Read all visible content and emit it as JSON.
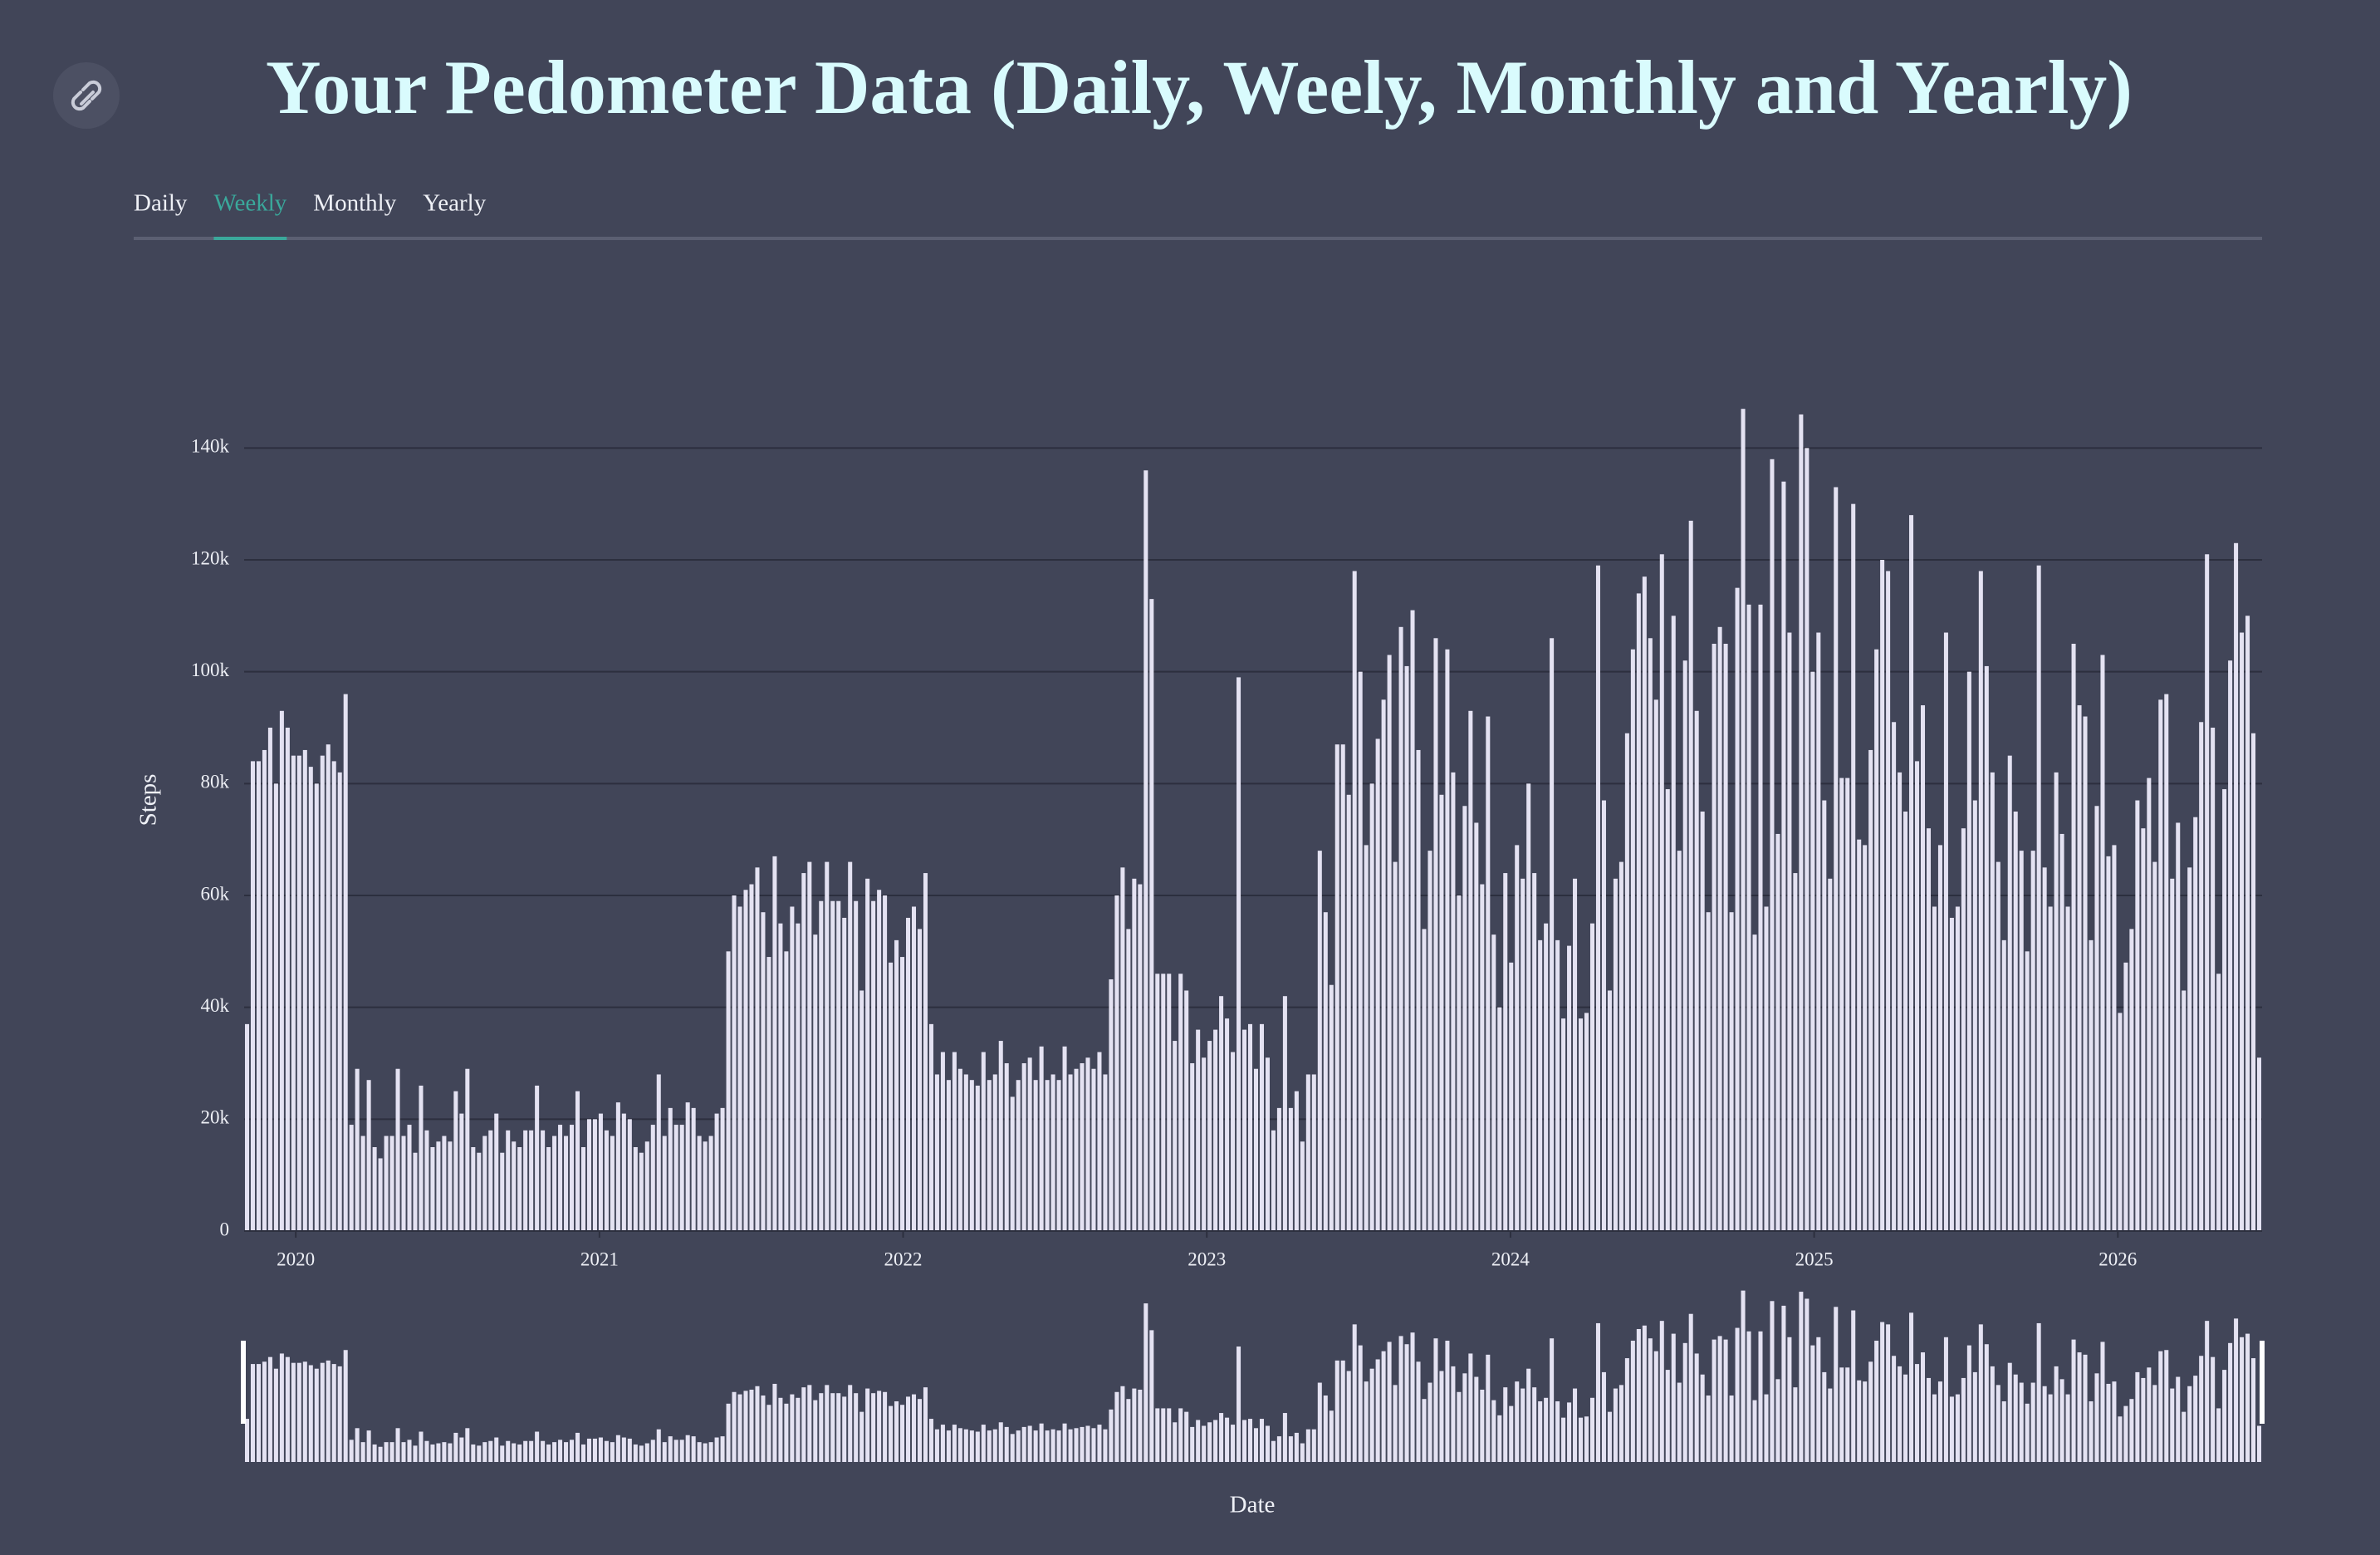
{
  "tabs": [
    "Daily",
    "Weekly",
    "Monthly",
    "Yearly"
  ],
  "active_tab": 1,
  "chart_data": {
    "type": "bar",
    "title": "Your Pedometer Data (Daily, Weely, Monthly and Yearly)",
    "ylabel": "Steps",
    "xlabel": "Date",
    "color": "#e4e2f2",
    "grid": true,
    "xlim": [
      2019.83,
      2026.475
    ],
    "xticks": [
      2020,
      2021,
      2022,
      2023,
      2024,
      2025,
      2026
    ],
    "ylim": [
      0,
      150000
    ],
    "yticks": [
      0,
      {
        "value": 20000,
        "label": "20k"
      },
      {
        "value": 40000,
        "label": "40k"
      },
      {
        "value": 60000,
        "label": "60k"
      },
      {
        "value": 80000,
        "label": "80k"
      },
      {
        "value": 100000,
        "label": "100k"
      },
      {
        "value": 120000,
        "label": "120k"
      },
      {
        "value": 140000,
        "label": "140k"
      }
    ],
    "values": [
      37000,
      84000,
      84000,
      86000,
      90000,
      80000,
      93000,
      90000,
      85000,
      85000,
      86000,
      83000,
      80000,
      85000,
      87000,
      84000,
      82000,
      96000,
      19000,
      29000,
      17000,
      27000,
      15000,
      13000,
      17000,
      17000,
      29000,
      17000,
      19000,
      14000,
      26000,
      18000,
      15000,
      16000,
      17000,
      16000,
      25000,
      21000,
      29000,
      15000,
      14000,
      17000,
      18000,
      21000,
      14000,
      18000,
      16000,
      15000,
      18000,
      18000,
      26000,
      18000,
      15000,
      17000,
      19000,
      17000,
      19000,
      25000,
      15000,
      20000,
      20000,
      21000,
      18000,
      17000,
      23000,
      21000,
      20000,
      15000,
      14000,
      16000,
      19000,
      28000,
      17000,
      22000,
      19000,
      19000,
      23000,
      22000,
      17000,
      16000,
      17000,
      21000,
      22000,
      50000,
      60000,
      58000,
      61000,
      62000,
      65000,
      57000,
      49000,
      67000,
      55000,
      50000,
      58000,
      55000,
      64000,
      66000,
      53000,
      59000,
      66000,
      59000,
      59000,
      56000,
      66000,
      59000,
      43000,
      63000,
      59000,
      61000,
      60000,
      48000,
      52000,
      49000,
      56000,
      58000,
      54000,
      64000,
      37000,
      28000,
      32000,
      27000,
      32000,
      29000,
      28000,
      27000,
      26000,
      32000,
      27000,
      28000,
      34000,
      30000,
      24000,
      27000,
      30000,
      31000,
      27000,
      33000,
      27000,
      28000,
      27000,
      33000,
      28000,
      29000,
      30000,
      31000,
      29000,
      32000,
      28000,
      45000,
      60000,
      65000,
      54000,
      63000,
      62000,
      136000,
      113000,
      46000,
      46000,
      46000,
      34000,
      46000,
      43000,
      30000,
      36000,
      31000,
      34000,
      36000,
      42000,
      38000,
      32000,
      99000,
      36000,
      37000,
      29000,
      37000,
      31000,
      18000,
      22000,
      42000,
      22000,
      25000,
      16000,
      28000,
      28000,
      68000,
      57000,
      44000,
      87000,
      87000,
      78000,
      118000,
      100000,
      69000,
      80000,
      88000,
      95000,
      103000,
      66000,
      108000,
      101000,
      111000,
      86000,
      54000,
      68000,
      106000,
      78000,
      104000,
      82000,
      60000,
      76000,
      93000,
      73000,
      62000,
      92000,
      53000,
      40000,
      64000,
      48000,
      69000,
      63000,
      80000,
      64000,
      52000,
      55000,
      106000,
      52000,
      38000,
      51000,
      63000,
      38000,
      39000,
      55000,
      119000,
      77000,
      43000,
      63000,
      66000,
      89000,
      104000,
      114000,
      117000,
      106000,
      95000,
      121000,
      79000,
      110000,
      68000,
      102000,
      127000,
      93000,
      75000,
      57000,
      105000,
      108000,
      105000,
      57000,
      115000,
      147000,
      112000,
      53000,
      112000,
      58000,
      138000,
      71000,
      134000,
      107000,
      64000,
      146000,
      140000,
      100000,
      107000,
      77000,
      63000,
      133000,
      81000,
      81000,
      130000,
      70000,
      69000,
      86000,
      104000,
      120000,
      118000,
      91000,
      82000,
      75000,
      128000,
      84000,
      94000,
      72000,
      58000,
      69000,
      107000,
      56000,
      58000,
      72000,
      100000,
      77000,
      118000,
      101000,
      82000,
      66000,
      52000,
      85000,
      75000,
      68000,
      50000,
      68000,
      119000,
      65000,
      58000,
      82000,
      71000,
      58000,
      105000,
      94000,
      92000,
      52000,
      76000,
      103000,
      67000,
      69000,
      39000,
      48000,
      54000,
      77000,
      72000,
      81000,
      66000,
      95000,
      96000,
      63000,
      73000,
      43000,
      65000,
      74000,
      91000,
      121000,
      90000,
      46000,
      79000,
      102000,
      123000,
      107000,
      110000,
      89000,
      31000
    ]
  }
}
